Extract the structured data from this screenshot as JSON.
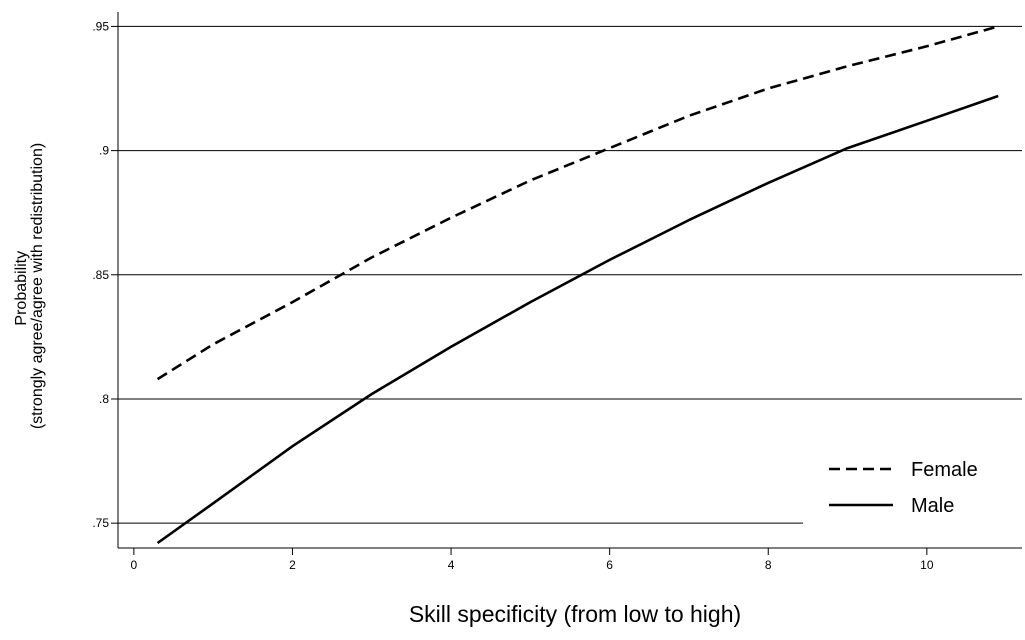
{
  "chart_data": {
    "type": "line",
    "title": "",
    "xlabel": "Skill specificity (from low to high)",
    "ylabel_lines": [
      "Probability",
      "(strongly agree/agree with redistribution)"
    ],
    "xlim": [
      -0.2,
      11.2
    ],
    "ylim": [
      0.74,
      0.955
    ],
    "x_ticks": [
      0,
      2,
      4,
      6,
      8,
      10
    ],
    "x_tick_labels": [
      "0",
      "2",
      "4",
      "6",
      "8",
      "10"
    ],
    "y_ticks": [
      0.75,
      0.8,
      0.85,
      0.9,
      0.95
    ],
    "y_tick_labels": [
      ".75",
      ".8",
      ".85",
      ".9",
      ".95"
    ],
    "grid": "horizontal",
    "legend_position": "bottom-right",
    "series": [
      {
        "name": "Female",
        "line_style": "dashed",
        "color": "#000000",
        "x": [
          0.3,
          1,
          2,
          3,
          4,
          5,
          6,
          7,
          8,
          9,
          10,
          10.9
        ],
        "values": [
          0.808,
          0.822,
          0.839,
          0.857,
          0.873,
          0.888,
          0.901,
          0.914,
          0.925,
          0.934,
          0.942,
          0.95
        ]
      },
      {
        "name": "Male",
        "line_style": "solid",
        "color": "#000000",
        "x": [
          0.3,
          1,
          2,
          3,
          4,
          5,
          6,
          7,
          8,
          9,
          10,
          10.9
        ],
        "values": [
          0.742,
          0.758,
          0.781,
          0.802,
          0.821,
          0.839,
          0.856,
          0.872,
          0.887,
          0.901,
          0.912,
          0.922
        ]
      }
    ]
  }
}
